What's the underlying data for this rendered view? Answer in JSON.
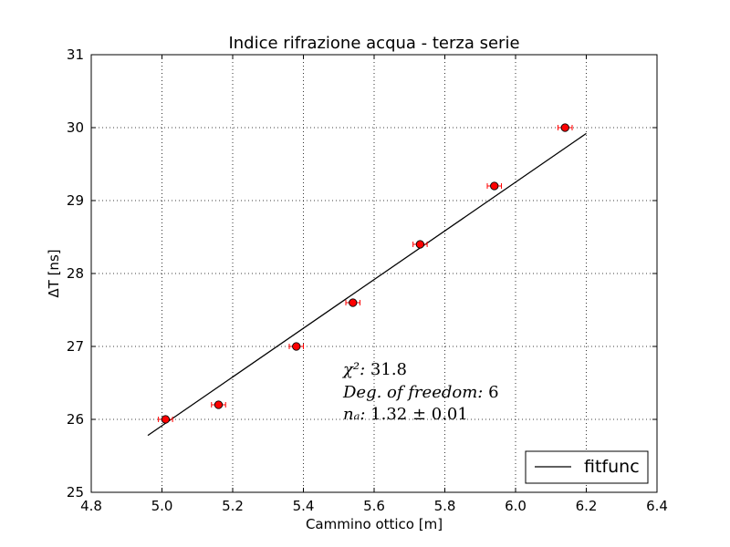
{
  "chart_data": {
    "type": "scatter",
    "title": "Indice rifrazione acqua - terza serie",
    "xlabel": "Cammino ottico [m]",
    "ylabel": "ΔT [ns]",
    "xlim": [
      4.8,
      6.4
    ],
    "ylim": [
      25,
      31
    ],
    "xticks": [
      "4.8",
      "5.0",
      "5.2",
      "5.4",
      "5.6",
      "5.8",
      "6.0",
      "6.2",
      "6.4"
    ],
    "yticks": [
      "25",
      "26",
      "27",
      "28",
      "29",
      "30",
      "31"
    ],
    "grid": true,
    "legend_position": "lower-right",
    "series": [
      {
        "type": "errorbar",
        "marker_color": "#ff0000",
        "x": [
          5.01,
          5.16,
          5.38,
          5.54,
          5.73,
          5.94,
          6.14
        ],
        "y": [
          26.0,
          26.2,
          27.0,
          27.6,
          28.4,
          29.2,
          30.0
        ],
        "xerr": [
          0.02,
          0.02,
          0.02,
          0.02,
          0.02,
          0.02,
          0.02
        ]
      },
      {
        "type": "line",
        "name": "fitfunc",
        "color": "#000000",
        "x": [
          4.96,
          6.2
        ],
        "y": [
          25.78,
          29.92
        ]
      }
    ],
    "annotations": {
      "chi2_label": "χ²: ",
      "chi2_value": "31.8",
      "dof_label": "Deg. of freedom: ",
      "dof_value": "6",
      "n_label": "nₐ: ",
      "n_value": "1.32 ± 0.01"
    }
  }
}
